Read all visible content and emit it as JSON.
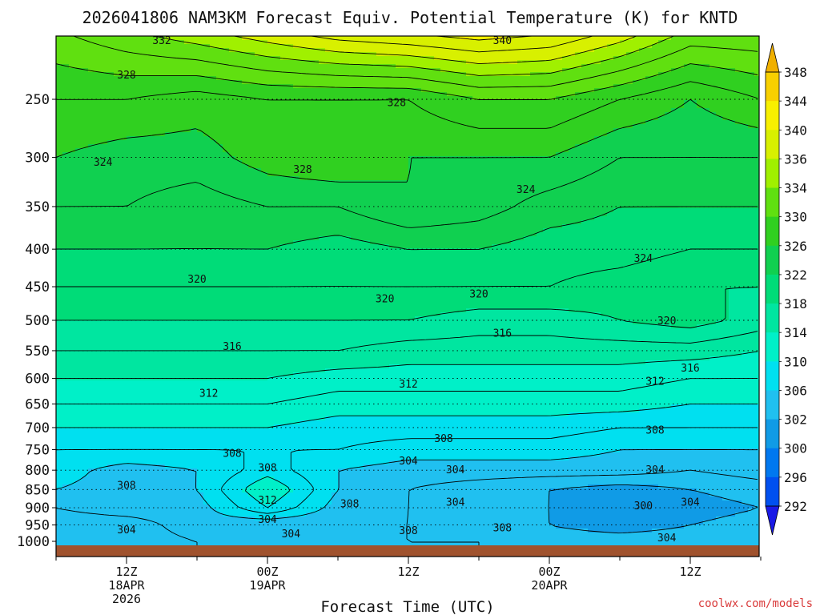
{
  "chart_data": {
    "type": "heatmap",
    "title": "2026041806 NAM3KM Forecast Equiv. Potential Temperature (K) for KNTD",
    "xlabel": "Forecast Time (UTC)",
    "ylabel": "",
    "yscale": "log",
    "ylim": [
      1000,
      200
    ],
    "xlim": [
      "2026-04-18 06Z",
      "2026-04-20 18Z"
    ],
    "y_ticks": [
      250,
      300,
      350,
      400,
      450,
      500,
      550,
      600,
      650,
      700,
      750,
      800,
      850,
      900,
      950,
      1000
    ],
    "x_ticks": [
      {
        "time": "2026-04-18 12Z",
        "lines": [
          "12Z",
          "18APR",
          "2026"
        ]
      },
      {
        "time": "2026-04-19 00Z",
        "lines": [
          "00Z",
          "19APR"
        ]
      },
      {
        "time": "2026-04-19 12Z",
        "lines": [
          "12Z"
        ]
      },
      {
        "time": "2026-04-20 00Z",
        "lines": [
          "00Z",
          "20APR"
        ]
      },
      {
        "time": "2026-04-20 12Z",
        "lines": [
          "12Z"
        ]
      }
    ],
    "x_times": [
      "2026-04-18 06Z",
      "2026-04-18 12Z",
      "2026-04-18 18Z",
      "2026-04-19 00Z",
      "2026-04-19 06Z",
      "2026-04-19 12Z",
      "2026-04-19 18Z",
      "2026-04-20 00Z",
      "2026-04-20 06Z",
      "2026-04-20 12Z",
      "2026-04-20 18Z"
    ],
    "levels": [
      1000,
      950,
      900,
      850,
      800,
      750,
      700,
      650,
      600,
      550,
      500,
      450,
      400,
      350,
      300,
      250,
      200
    ],
    "values": [
      [
        302,
        303,
        304,
        305,
        304,
        304,
        304,
        303,
        303,
        303,
        304
      ],
      [
        303,
        303,
        305,
        304,
        304,
        304,
        303,
        302,
        301,
        302,
        303
      ],
      [
        304,
        305,
        305,
        310,
        305,
        304,
        303,
        302,
        300,
        301,
        302
      ],
      [
        306,
        305,
        306,
        312,
        306,
        304,
        303,
        302,
        301,
        302,
        303
      ],
      [
        307,
        305,
        306,
        309,
        306,
        305,
        305,
        305,
        305,
        304,
        305
      ],
      [
        308,
        308,
        308,
        308,
        308,
        307,
        307,
        307,
        306,
        306,
        306
      ],
      [
        310,
        310,
        310,
        310,
        309,
        309,
        309,
        309,
        308,
        308,
        308
      ],
      [
        312,
        312,
        312,
        312,
        311,
        311,
        311,
        311,
        311,
        310,
        310
      ],
      [
        314,
        314,
        314,
        314,
        313,
        313,
        313,
        313,
        313,
        312,
        312
      ],
      [
        316,
        316,
        316,
        316,
        316,
        315,
        315,
        315,
        315,
        315,
        314
      ],
      [
        318,
        318,
        318,
        318,
        318,
        318,
        317,
        317,
        318,
        319,
        317
      ],
      [
        320,
        320,
        320,
        320,
        320,
        320,
        320,
        320,
        319,
        318,
        318
      ],
      [
        322,
        322,
        322,
        322,
        321,
        322,
        322,
        321,
        321,
        320,
        320
      ],
      [
        324,
        324,
        323,
        324,
        324,
        326,
        325,
        323,
        322,
        322,
        322
      ],
      [
        326,
        325,
        325,
        327,
        328,
        326,
        326,
        326,
        324,
        324,
        324
      ],
      [
        328,
        328,
        327,
        328,
        328,
        328,
        330,
        330,
        328,
        326,
        328
      ],
      [
        332,
        334,
        336,
        338,
        340,
        341,
        342,
        341,
        338,
        334,
        334
      ]
    ],
    "contour_labels": [
      {
        "text": "332",
        "t": "2026-04-18 15Z",
        "p": 208
      },
      {
        "text": "340",
        "t": "2026-04-19 20Z",
        "p": 208
      },
      {
        "text": "328",
        "t": "2026-04-18 12Z",
        "p": 232
      },
      {
        "text": "328",
        "t": "2026-04-19 11Z",
        "p": 253
      },
      {
        "text": "324",
        "t": "2026-04-18 10Z",
        "p": 305
      },
      {
        "text": "328",
        "t": "2026-04-19 03Z",
        "p": 312
      },
      {
        "text": "324",
        "t": "2026-04-19 22Z",
        "p": 332
      },
      {
        "text": "324",
        "t": "2026-04-20 08Z",
        "p": 412
      },
      {
        "text": "320",
        "t": "2026-04-18 18Z",
        "p": 440
      },
      {
        "text": "320",
        "t": "2026-04-19 10Z",
        "p": 468
      },
      {
        "text": "320",
        "t": "2026-04-19 18Z",
        "p": 461
      },
      {
        "text": "320",
        "t": "2026-04-20 10Z",
        "p": 501
      },
      {
        "text": "316",
        "t": "2026-04-18 21Z",
        "p": 543
      },
      {
        "text": "316",
        "t": "2026-04-19 20Z",
        "p": 521
      },
      {
        "text": "316",
        "t": "2026-04-20 12Z",
        "p": 581
      },
      {
        "text": "312",
        "t": "2026-04-18 19Z",
        "p": 629
      },
      {
        "text": "312",
        "t": "2026-04-19 12Z",
        "p": 611
      },
      {
        "text": "312",
        "t": "2026-04-20 09Z",
        "p": 606
      },
      {
        "text": "308",
        "t": "2026-04-20 09Z",
        "p": 706
      },
      {
        "text": "308",
        "t": "2026-04-19 15Z",
        "p": 725
      },
      {
        "text": "308",
        "t": "2026-04-18 21Z",
        "p": 760
      },
      {
        "text": "304",
        "t": "2026-04-19 12Z",
        "p": 778
      },
      {
        "text": "304",
        "t": "2026-04-19 16Z",
        "p": 800
      },
      {
        "text": "304",
        "t": "2026-04-20 09Z",
        "p": 800
      },
      {
        "text": "308",
        "t": "2026-04-19 00Z",
        "p": 795
      },
      {
        "text": "308",
        "t": "2026-04-18 12Z",
        "p": 840
      },
      {
        "text": "312",
        "t": "2026-04-19 00Z",
        "p": 880
      },
      {
        "text": "308",
        "t": "2026-04-19 07Z",
        "p": 890
      },
      {
        "text": "304",
        "t": "2026-04-19 16Z",
        "p": 885
      },
      {
        "text": "304",
        "t": "2026-04-20 12Z",
        "p": 885
      },
      {
        "text": "300",
        "t": "2026-04-20 08Z",
        "p": 895
      },
      {
        "text": "304",
        "t": "2026-04-19 00Z",
        "p": 935
      },
      {
        "text": "304",
        "t": "2026-04-18 12Z",
        "p": 965
      },
      {
        "text": "308",
        "t": "2026-04-19 20Z",
        "p": 960
      },
      {
        "text": "308",
        "t": "2026-04-19 12Z",
        "p": 968
      },
      {
        "text": "304",
        "t": "2026-04-19 02Z",
        "p": 978
      },
      {
        "text": "304",
        "t": "2026-04-20 10Z",
        "p": 990
      }
    ],
    "colorbar": {
      "ticks": [
        292,
        296,
        300,
        302,
        306,
        310,
        314,
        318,
        322,
        326,
        330,
        334,
        336,
        340,
        344,
        348
      ],
      "colors": [
        "#1a1ae6",
        "#0050f0",
        "#0078f0",
        "#109be6",
        "#20c0f0",
        "#00e0f0",
        "#00f0c8",
        "#00e6a0",
        "#00dc78",
        "#10d050",
        "#30d020",
        "#60e010",
        "#a0f000",
        "#d8f000",
        "#f8f000",
        "#f8d000",
        "#f0b000"
      ]
    },
    "ground_color": "#a0522d"
  },
  "credit": "coolwx.com/models"
}
